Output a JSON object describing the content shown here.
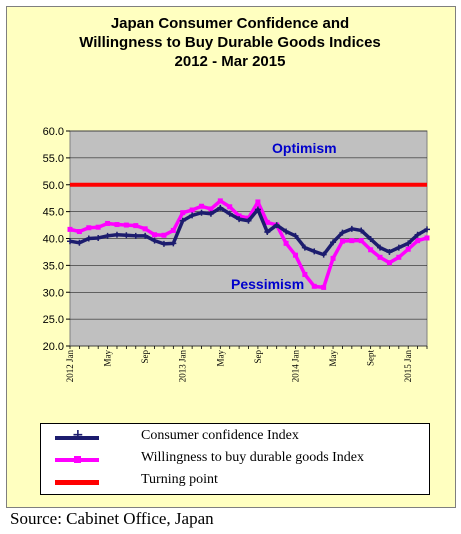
{
  "title_lines": [
    "Japan Consumer Confidence and",
    "Willingness to Buy Durable Goods Indices",
    "2012 - Mar  2015"
  ],
  "source": "Source: Cabinet Office, Japan",
  "annotations": {
    "optimism": "Optimism",
    "pessimism": "Pessimism"
  },
  "colors": {
    "consumer": "#1c1c6e",
    "willingness": "#ff00ff",
    "turning": "#ff0000",
    "plot_bg": "#c0c0c0",
    "frame_bg": "#ffffc0",
    "annotation": "#0000cc"
  },
  "chart_data": {
    "type": "line",
    "title": "Japan Consumer Confidence and Willingness to Buy Durable Goods Indices 2012 - Mar  2015",
    "ylim": [
      20,
      60
    ],
    "yticks": [
      "60.0",
      "55.0",
      "50.0",
      "45.0",
      "40.0",
      "35.0",
      "30.0",
      "25.0",
      "20.0"
    ],
    "ytick_values": [
      60,
      55,
      50,
      45,
      40,
      35,
      30,
      25,
      20
    ],
    "x_tick_labels": [
      {
        "index": 0,
        "label": "2012 Jan"
      },
      {
        "index": 4,
        "label": "May"
      },
      {
        "index": 8,
        "label": "Sep"
      },
      {
        "index": 12,
        "label": "2013 Jan"
      },
      {
        "index": 16,
        "label": "May"
      },
      {
        "index": 20,
        "label": "Sep"
      },
      {
        "index": 24,
        "label": "2014 Jan"
      },
      {
        "index": 28,
        "label": "May"
      },
      {
        "index": 32,
        "label": "Sept"
      },
      {
        "index": 36,
        "label": "2015 Jan"
      }
    ],
    "x": [
      "2012-01",
      "2012-02",
      "2012-03",
      "2012-04",
      "2012-05",
      "2012-06",
      "2012-07",
      "2012-08",
      "2012-09",
      "2012-10",
      "2012-11",
      "2012-12",
      "2013-01",
      "2013-02",
      "2013-03",
      "2013-04",
      "2013-05",
      "2013-06",
      "2013-07",
      "2013-08",
      "2013-09",
      "2013-10",
      "2013-11",
      "2013-12",
      "2014-01",
      "2014-02",
      "2014-03",
      "2014-04",
      "2014-05",
      "2014-06",
      "2014-07",
      "2014-08",
      "2014-09",
      "2014-10",
      "2014-11",
      "2014-12",
      "2015-01",
      "2015-02",
      "2015-03"
    ],
    "series": [
      {
        "name": "Consumer confidence Index",
        "values": [
          39.5,
          39.2,
          40.0,
          40.1,
          40.5,
          40.7,
          40.6,
          40.5,
          40.5,
          39.6,
          39.0,
          39.1,
          43.3,
          44.3,
          44.8,
          44.6,
          45.7,
          44.6,
          43.6,
          43.3,
          45.4,
          41.2,
          42.5,
          41.3,
          40.5,
          38.3,
          37.6,
          37.0,
          39.3,
          41.1,
          41.8,
          41.5,
          39.9,
          38.3,
          37.5,
          38.3,
          39.1,
          40.7,
          41.7
        ]
      },
      {
        "name": "Willingness to buy durable goods Index",
        "values": [
          41.7,
          41.3,
          42.0,
          42.1,
          42.8,
          42.6,
          42.5,
          42.4,
          41.8,
          40.7,
          40.6,
          41.5,
          44.8,
          45.3,
          46.0,
          45.5,
          47.0,
          45.9,
          44.2,
          43.8,
          46.8,
          43.0,
          42.5,
          39.1,
          36.9,
          33.3,
          31.1,
          30.9,
          36.3,
          39.5,
          39.6,
          39.6,
          37.9,
          36.5,
          35.5,
          36.5,
          38.0,
          39.6,
          40.1
        ]
      },
      {
        "name": "Turning point",
        "values": [
          50,
          50,
          50,
          50,
          50,
          50,
          50,
          50,
          50,
          50,
          50,
          50,
          50,
          50,
          50,
          50,
          50,
          50,
          50,
          50,
          50,
          50,
          50,
          50,
          50,
          50,
          50,
          50,
          50,
          50,
          50,
          50,
          50,
          50,
          50,
          50,
          50,
          50,
          50
        ]
      }
    ],
    "legend": [
      {
        "label": "Consumer confidence Index",
        "color": "#1c1c6e",
        "marker": "cross"
      },
      {
        "label": "Willingness to buy durable goods Index",
        "color": "#ff00ff",
        "marker": "square"
      },
      {
        "label": "Turning point",
        "color": "#ff0000",
        "marker": "none"
      }
    ],
    "legend_position": "bottom",
    "grid": true
  }
}
